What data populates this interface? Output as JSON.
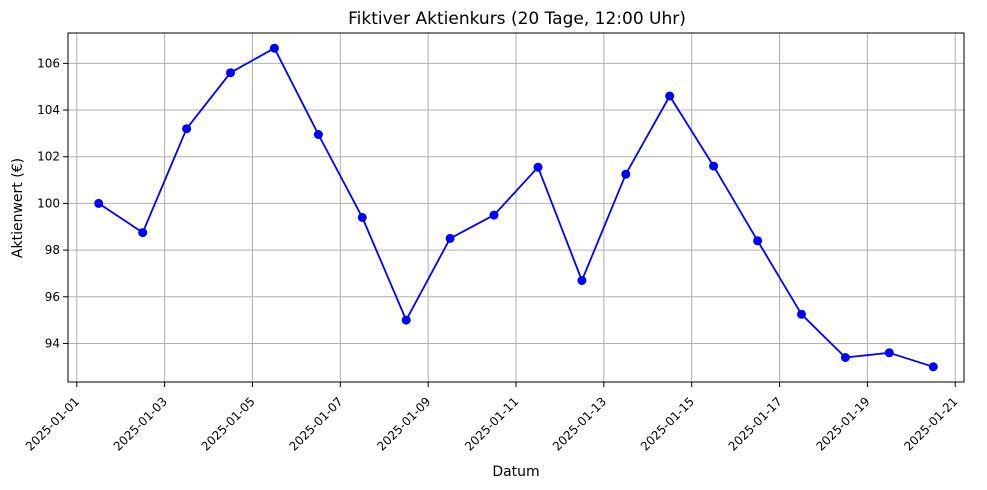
{
  "chart_data": {
    "type": "line",
    "title": "Fiktiver Aktienkurs (20 Tage, 12:00 Uhr)",
    "xlabel": "Datum",
    "ylabel": "Aktienwert (€)",
    "x": [
      "2025-01-01T12:00",
      "2025-01-02T12:00",
      "2025-01-03T12:00",
      "2025-01-04T12:00",
      "2025-01-05T12:00",
      "2025-01-06T12:00",
      "2025-01-07T12:00",
      "2025-01-08T12:00",
      "2025-01-09T12:00",
      "2025-01-10T12:00",
      "2025-01-11T12:00",
      "2025-01-12T12:00",
      "2025-01-13T12:00",
      "2025-01-14T12:00",
      "2025-01-15T12:00",
      "2025-01-16T12:00",
      "2025-01-17T12:00",
      "2025-01-18T12:00",
      "2025-01-19T12:00",
      "2025-01-20T12:00"
    ],
    "series": [
      {
        "values": [
          100.0,
          98.75,
          103.2,
          105.6,
          106.65,
          102.95,
          99.4,
          95.0,
          98.5,
          99.5,
          101.55,
          96.7,
          101.25,
          104.6,
          101.6,
          98.4,
          95.25,
          93.4,
          93.6,
          93.0
        ],
        "color": "#0000ff"
      }
    ],
    "xticks": [
      "2025-01-01",
      "2025-01-03",
      "2025-01-05",
      "2025-01-07",
      "2025-01-09",
      "2025-01-11",
      "2025-01-13",
      "2025-01-15",
      "2025-01-17",
      "2025-01-19",
      "2025-01-21"
    ],
    "yticks": [
      94,
      96,
      98,
      100,
      102,
      104,
      106
    ],
    "xlim": [
      "2025-01-00T19:12",
      "2025-01-21T04:48"
    ],
    "ylim": [
      92.35,
      107.3
    ],
    "grid": true,
    "legend": "none",
    "colors": {
      "line": "#0000ff",
      "marker": "#0000ff",
      "grid": "#b0b0b0",
      "axis": "#000000"
    }
  }
}
